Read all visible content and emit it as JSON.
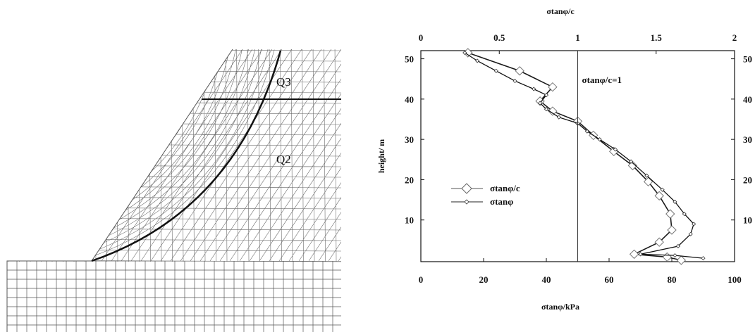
{
  "mesh_panel": {
    "region_labels": [
      "Q3",
      "Q2"
    ]
  },
  "chart_data": {
    "type": "line",
    "x_bottom": {
      "label": "σtanφ/kPa",
      "range": [
        0,
        100
      ],
      "ticks": [
        0,
        20,
        40,
        60,
        80,
        100
      ],
      "tick_labels": [
        "0",
        "20",
        "40",
        "60",
        "80",
        "100"
      ]
    },
    "x_top": {
      "label": "σtanφ/c",
      "range": [
        0,
        2
      ],
      "ticks": [
        0,
        0.5,
        1,
        1.5,
        2
      ],
      "tick_labels": [
        "0",
        "0.5",
        "1",
        "1.5",
        "2"
      ]
    },
    "y": {
      "label": "height/ m",
      "range": [
        0,
        52
      ],
      "ticks": [
        10,
        20,
        30,
        40,
        50
      ],
      "tick_labels": [
        "10",
        "20",
        "30",
        "40",
        "50"
      ],
      "right_tick_labels": [
        "10",
        "20",
        "30",
        "40",
        "50"
      ]
    },
    "reference_line": {
      "x_top": 1,
      "label": "σtanφ/c=1"
    },
    "legend": {
      "placement": "center-left"
    },
    "series": [
      {
        "name": "σtanφ/c",
        "axis": "top",
        "marker": "diamond",
        "points": [
          [
            0.3,
            51.5
          ],
          [
            0.63,
            47
          ],
          [
            0.84,
            43
          ],
          [
            0.76,
            39.5
          ],
          [
            0.84,
            37
          ],
          [
            1.0,
            34.5
          ],
          [
            1.1,
            31
          ],
          [
            1.23,
            27
          ],
          [
            1.35,
            23.5
          ],
          [
            1.45,
            19.5
          ],
          [
            1.52,
            16
          ],
          [
            1.59,
            11.5
          ],
          [
            1.6,
            7.5
          ],
          [
            1.52,
            4.5
          ],
          [
            1.36,
            1.5
          ],
          [
            1.57,
            0.8
          ],
          [
            1.66,
            0
          ]
        ]
      },
      {
        "name": "σtanφ",
        "axis": "bottom",
        "marker": "small-diamond",
        "points": [
          [
            14,
            51.5
          ],
          [
            18,
            49.5
          ],
          [
            24,
            47
          ],
          [
            30,
            44.5
          ],
          [
            36,
            42.5
          ],
          [
            40,
            41
          ],
          [
            38,
            39
          ],
          [
            40,
            37.5
          ],
          [
            44,
            35.5
          ],
          [
            50,
            34
          ],
          [
            53,
            32
          ],
          [
            57,
            30
          ],
          [
            62,
            27.5
          ],
          [
            67,
            24.5
          ],
          [
            72,
            21
          ],
          [
            77,
            17.5
          ],
          [
            81,
            14.5
          ],
          [
            84,
            11.5
          ],
          [
            87,
            9
          ],
          [
            86,
            6.5
          ],
          [
            82,
            3.5
          ],
          [
            70,
            1.5
          ],
          [
            81,
            1.2
          ],
          [
            90,
            0.5
          ]
        ]
      }
    ]
  }
}
